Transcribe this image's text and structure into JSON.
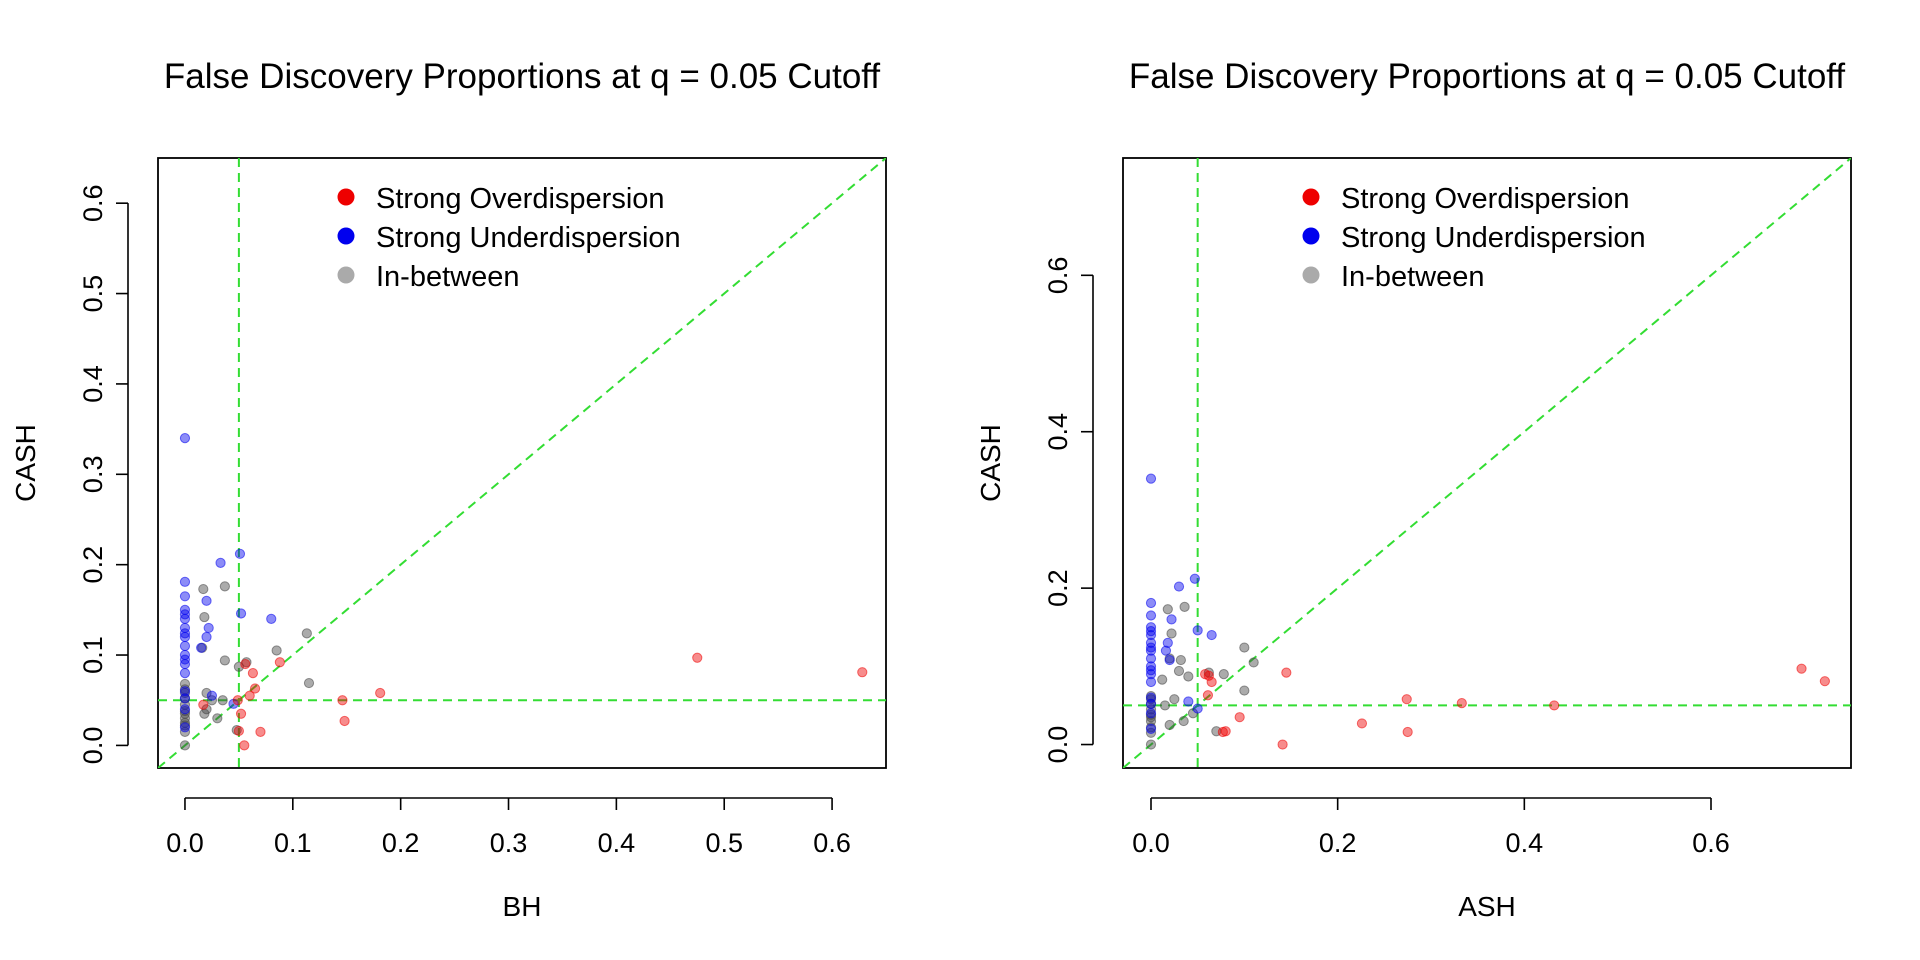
{
  "chart_data": [
    {
      "type": "scatter",
      "title": "False Discovery Proportions at q = 0.05 Cutoff",
      "xlabel": "BH",
      "ylabel": "CASH",
      "xlim": [
        -0.025,
        0.65
      ],
      "ylim": [
        -0.025,
        0.65
      ],
      "xticks": [
        0.0,
        0.1,
        0.2,
        0.3,
        0.4,
        0.5,
        0.6
      ],
      "xtick_labels": [
        "0.0",
        "0.1",
        "0.2",
        "0.3",
        "0.4",
        "0.5",
        "0.6"
      ],
      "yticks": [
        0.0,
        0.1,
        0.2,
        0.3,
        0.4,
        0.5,
        0.6
      ],
      "ytick_labels": [
        "0.0",
        "0.1",
        "0.2",
        "0.3",
        "0.4",
        "0.5",
        "0.6"
      ],
      "reference_lines": {
        "vertical": 0.05,
        "horizontal": 0.05,
        "diagonal": true,
        "color": "#33dd33"
      },
      "legend_position": "top",
      "legend": [
        {
          "label": "Strong Overdispersion",
          "color": "#ee0000"
        },
        {
          "label": "Strong Underdispersion",
          "color": "#0000ee"
        },
        {
          "label": "In-between",
          "color": "#aaaaaa"
        }
      ],
      "series": [
        {
          "name": "Strong Overdispersion",
          "color": "#ee0000",
          "x": [
            0.475,
            0.628,
            0.146,
            0.181,
            0.148,
            0.088,
            0.063,
            0.065,
            0.06,
            0.056,
            0.052,
            0.05,
            0.07,
            0.055,
            0.017,
            0.049
          ],
          "y": [
            0.097,
            0.081,
            0.05,
            0.058,
            0.027,
            0.092,
            0.08,
            0.063,
            0.055,
            0.09,
            0.035,
            0.016,
            0.015,
            0.0,
            0.045,
            0.05
          ]
        },
        {
          "name": "Strong Underdispersion",
          "color": "#0000ee",
          "x": [
            0.0,
            0.0,
            0.0,
            0.0,
            0.0,
            0.0,
            0.0,
            0.0,
            0.0,
            0.0,
            0.0,
            0.0,
            0.0,
            0.0,
            0.0,
            0.0,
            0.0,
            0.0,
            0.033,
            0.051,
            0.02,
            0.022,
            0.02,
            0.052,
            0.08,
            0.045,
            0.015,
            0.025
          ],
          "y": [
            0.34,
            0.181,
            0.165,
            0.15,
            0.145,
            0.14,
            0.13,
            0.124,
            0.12,
            0.11,
            0.1,
            0.095,
            0.09,
            0.08,
            0.06,
            0.052,
            0.04,
            0.02,
            0.202,
            0.212,
            0.16,
            0.13,
            0.12,
            0.146,
            0.14,
            0.046,
            0.108,
            0.055
          ]
        },
        {
          "name": "In-between",
          "color": "#444444",
          "x": [
            0.0,
            0.0,
            0.0,
            0.0,
            0.0,
            0.0,
            0.0,
            0.0,
            0.0,
            0.0,
            0.0,
            0.0,
            0.017,
            0.018,
            0.016,
            0.037,
            0.037,
            0.05,
            0.057,
            0.085,
            0.113,
            0.115,
            0.02,
            0.025,
            0.035,
            0.018,
            0.048,
            0.02,
            0.03
          ],
          "y": [
            0.0,
            0.015,
            0.022,
            0.03,
            0.038,
            0.045,
            0.052,
            0.058,
            0.062,
            0.068,
            0.035,
            0.025,
            0.173,
            0.142,
            0.108,
            0.176,
            0.094,
            0.087,
            0.092,
            0.105,
            0.124,
            0.069,
            0.058,
            0.05,
            0.05,
            0.035,
            0.017,
            0.04,
            0.03
          ]
        }
      ]
    },
    {
      "type": "scatter",
      "title": "False Discovery Proportions at q = 0.05 Cutoff",
      "xlabel": "ASH",
      "ylabel": "CASH",
      "xlim": [
        -0.03,
        0.75
      ],
      "ylim": [
        -0.03,
        0.75
      ],
      "xticks": [
        0.0,
        0.2,
        0.4,
        0.6
      ],
      "xtick_labels": [
        "0.0",
        "0.2",
        "0.4",
        "0.6"
      ],
      "yticks": [
        0.0,
        0.2,
        0.4,
        0.6
      ],
      "ytick_labels": [
        "0.0",
        "0.2",
        "0.4",
        "0.6"
      ],
      "reference_lines": {
        "vertical": 0.05,
        "horizontal": 0.05,
        "diagonal": true,
        "color": "#33dd33"
      },
      "legend_position": "top",
      "legend": [
        {
          "label": "Strong Overdispersion",
          "color": "#ee0000"
        },
        {
          "label": "Strong Underdispersion",
          "color": "#0000ee"
        },
        {
          "label": "In-between",
          "color": "#aaaaaa"
        }
      ],
      "series": [
        {
          "name": "Strong Overdispersion",
          "color": "#ee0000",
          "x": [
            0.697,
            0.722,
            0.432,
            0.333,
            0.274,
            0.226,
            0.275,
            0.145,
            0.141,
            0.095,
            0.08,
            0.077,
            0.065,
            0.058,
            0.062,
            0.061
          ],
          "y": [
            0.097,
            0.081,
            0.05,
            0.053,
            0.058,
            0.027,
            0.016,
            0.092,
            0.0,
            0.035,
            0.017,
            0.016,
            0.08,
            0.09,
            0.088,
            0.063
          ]
        },
        {
          "name": "Strong Underdispersion",
          "color": "#0000ee",
          "x": [
            0.0,
            0.0,
            0.0,
            0.0,
            0.0,
            0.0,
            0.0,
            0.0,
            0.0,
            0.0,
            0.0,
            0.0,
            0.0,
            0.0,
            0.0,
            0.0,
            0.0,
            0.0,
            0.047,
            0.05,
            0.03,
            0.022,
            0.018,
            0.016,
            0.065,
            0.02,
            0.04,
            0.05
          ],
          "y": [
            0.34,
            0.181,
            0.165,
            0.15,
            0.145,
            0.14,
            0.13,
            0.124,
            0.12,
            0.11,
            0.1,
            0.095,
            0.09,
            0.08,
            0.06,
            0.052,
            0.04,
            0.02,
            0.212,
            0.146,
            0.202,
            0.16,
            0.13,
            0.12,
            0.14,
            0.108,
            0.055,
            0.046
          ]
        },
        {
          "name": "In-between",
          "color": "#444444",
          "x": [
            0.0,
            0.0,
            0.0,
            0.0,
            0.0,
            0.0,
            0.0,
            0.0,
            0.0,
            0.0,
            0.018,
            0.022,
            0.036,
            0.032,
            0.02,
            0.03,
            0.04,
            0.062,
            0.1,
            0.1,
            0.078,
            0.11,
            0.015,
            0.025,
            0.045,
            0.02,
            0.035,
            0.07,
            0.012
          ],
          "y": [
            0.0,
            0.015,
            0.022,
            0.03,
            0.038,
            0.045,
            0.052,
            0.058,
            0.062,
            0.035,
            0.173,
            0.142,
            0.176,
            0.108,
            0.11,
            0.094,
            0.087,
            0.092,
            0.124,
            0.069,
            0.09,
            0.105,
            0.05,
            0.058,
            0.04,
            0.025,
            0.03,
            0.017,
            0.083
          ]
        }
      ]
    }
  ]
}
